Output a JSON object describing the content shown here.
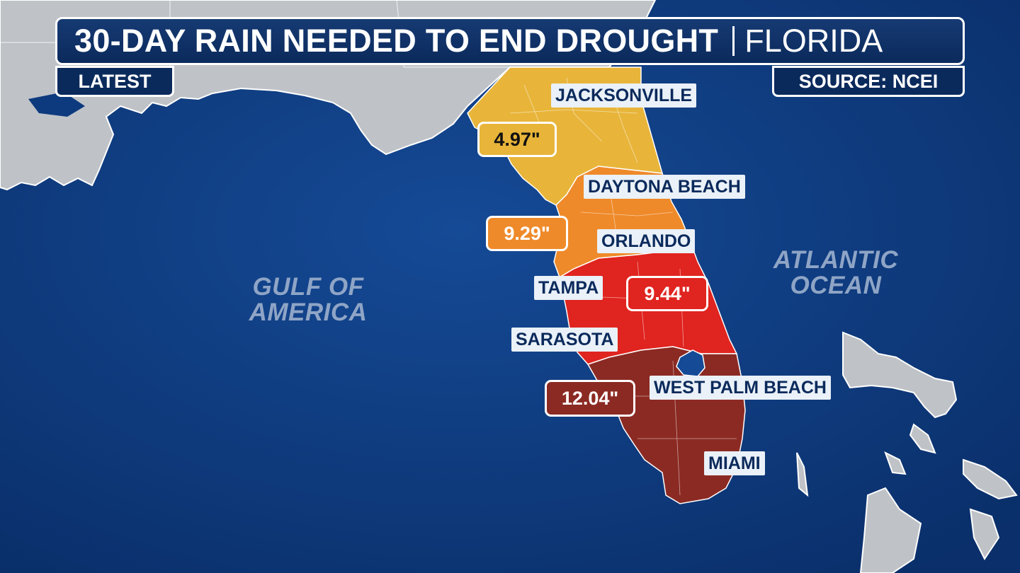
{
  "header": {
    "title": "30-DAY RAIN NEEDED TO END DROUGHT",
    "region": "FLORIDA",
    "latest_label": "LATEST",
    "source_label": "SOURCE: NCEI"
  },
  "cities": [
    {
      "name": "JACKSONVILLE"
    },
    {
      "name": "DAYTONA BEACH"
    },
    {
      "name": "ORLANDO"
    },
    {
      "name": "TAMPA"
    },
    {
      "name": "SARASOTA"
    },
    {
      "name": "WEST PALM BEACH"
    },
    {
      "name": "MIAMI"
    }
  ],
  "rain_values": [
    {
      "value": "4.97\"",
      "color": "#e8b53a",
      "text_color": "#111111"
    },
    {
      "value": "9.29\"",
      "color": "#ef8a2a",
      "text_color": "#ffffff"
    },
    {
      "value": "9.44\"",
      "color": "#e0241f",
      "text_color": "#ffffff"
    },
    {
      "value": "12.04\"",
      "color": "#8b2a23",
      "text_color": "#ffffff"
    }
  ],
  "water_labels": {
    "gulf": "GULF OF\nAMERICA",
    "atlantic": "ATLANTIC\nOCEAN"
  },
  "colors": {
    "ocean": "#0d3a7e",
    "land": "#bfc3c8",
    "zone_north": "#e8b53a",
    "zone_central": "#ef8a2a",
    "zone_south_central": "#e0241f",
    "zone_south": "#8b2a23"
  }
}
